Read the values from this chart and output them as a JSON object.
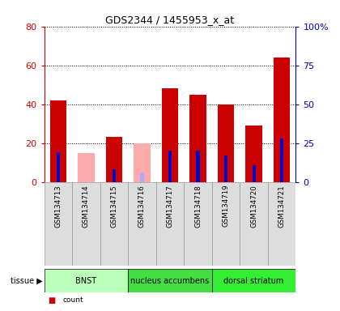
{
  "title": "GDS2344 / 1455953_x_at",
  "samples": [
    "GSM134713",
    "GSM134714",
    "GSM134715",
    "GSM134716",
    "GSM134717",
    "GSM134718",
    "GSM134719",
    "GSM134720",
    "GSM134721"
  ],
  "count_present": [
    42,
    0,
    23,
    0,
    48,
    45,
    40,
    29,
    64
  ],
  "count_absent": [
    0,
    15,
    0,
    20,
    0,
    0,
    0,
    0,
    0
  ],
  "rank_present": [
    19,
    0,
    8,
    0,
    20,
    20,
    17,
    11,
    28
  ],
  "rank_absent": [
    0,
    0,
    0,
    6,
    0,
    0,
    0,
    0,
    0
  ],
  "tissues": [
    {
      "label": "BNST",
      "start": 0,
      "end": 3,
      "color": "#bbffbb"
    },
    {
      "label": "nucleus accumbens",
      "start": 3,
      "end": 6,
      "color": "#44dd44"
    },
    {
      "label": "dorsal striatum",
      "start": 6,
      "end": 9,
      "color": "#33ee33"
    }
  ],
  "ylim_left": [
    0,
    80
  ],
  "ylim_right": [
    0,
    100
  ],
  "yticks_left": [
    0,
    20,
    40,
    60,
    80
  ],
  "yticks_right": [
    0,
    25,
    50,
    75,
    100
  ],
  "left_tick_color": "#cc0000",
  "right_tick_color": "#0000cc",
  "bar_width": 0.6,
  "rank_bar_width": 0.12,
  "color_count_present": "#cc0000",
  "color_count_absent": "#ffaaaa",
  "color_rank_present": "#0000cc",
  "color_rank_absent": "#aaaaff",
  "sample_box_color": "#dddddd",
  "plot_bg": "#ffffff",
  "grid_color": "#000000"
}
